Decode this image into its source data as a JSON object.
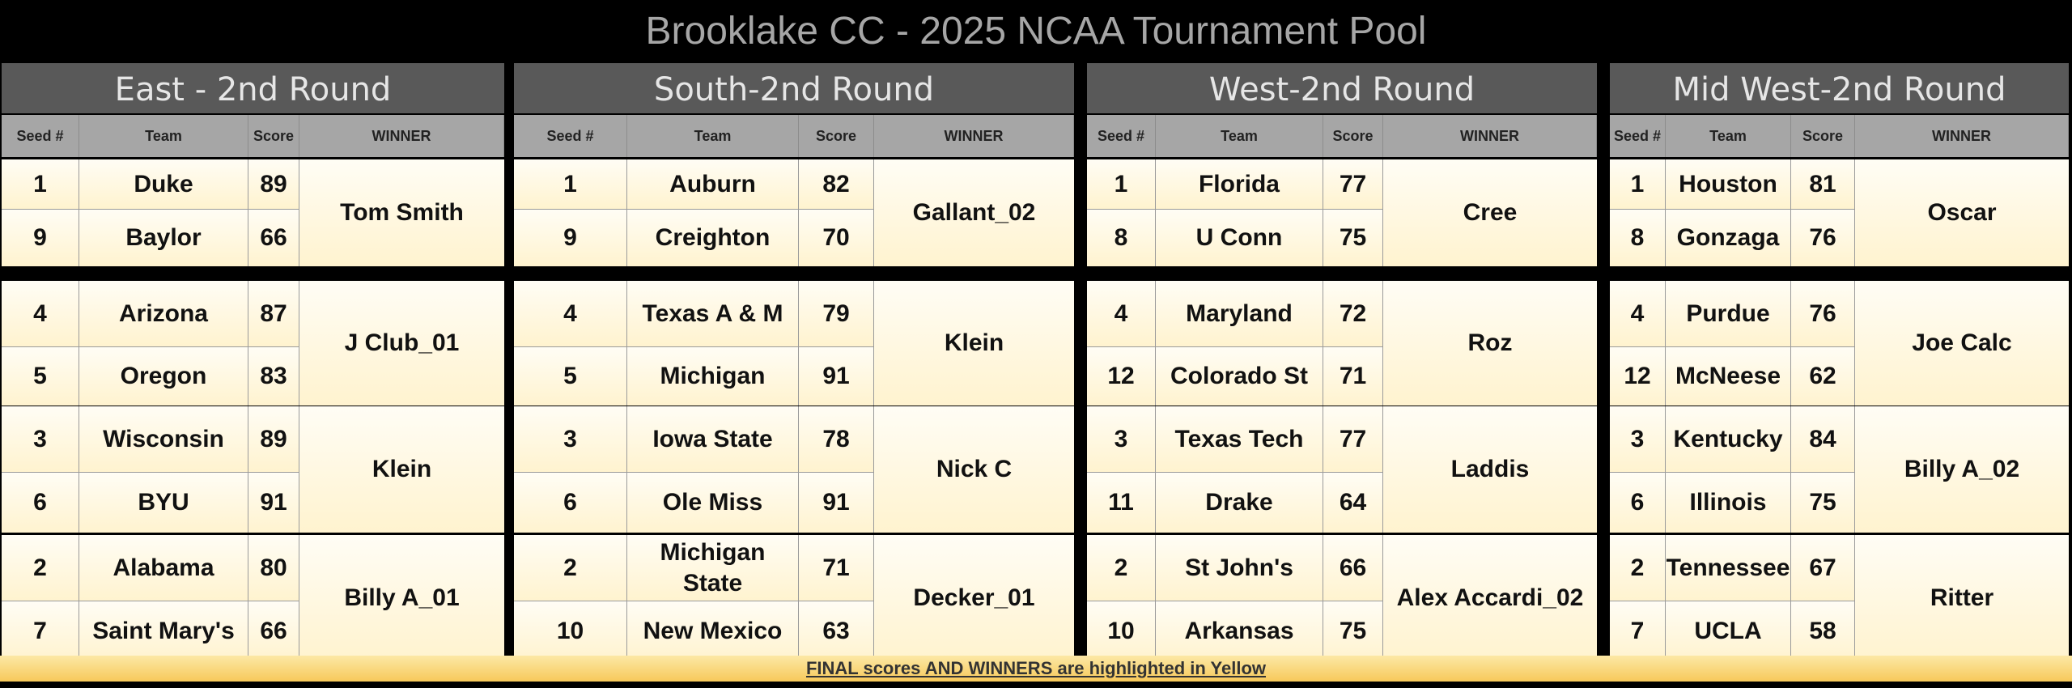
{
  "page_title": "Brooklake CC - 2025 NCAA Tournament Pool",
  "columns": {
    "seed": "Seed #",
    "team": "Team",
    "score": "Score",
    "winner": "WINNER"
  },
  "regions": [
    {
      "title": "East - 2nd Round",
      "matchups": [
        {
          "teams": [
            {
              "seed": "1",
              "team": "Duke",
              "score": "89"
            },
            {
              "seed": "9",
              "team": "Baylor",
              "score": "66"
            }
          ],
          "winner": "Tom Smith"
        },
        {
          "teams": [
            {
              "seed": "4",
              "team": "Arizona",
              "score": "87"
            },
            {
              "seed": "5",
              "team": "Oregon",
              "score": "83"
            }
          ],
          "winner": "J Club_01"
        },
        {
          "teams": [
            {
              "seed": "3",
              "team": "Wisconsin",
              "score": "89"
            },
            {
              "seed": "6",
              "team": "BYU",
              "score": "91"
            }
          ],
          "winner": "Klein"
        },
        {
          "teams": [
            {
              "seed": "2",
              "team": "Alabama",
              "score": "80"
            },
            {
              "seed": "7",
              "team": "Saint Mary's",
              "score": "66"
            }
          ],
          "winner": "Billy A_01"
        }
      ]
    },
    {
      "title": "South-2nd Round",
      "matchups": [
        {
          "teams": [
            {
              "seed": "1",
              "team": "Auburn",
              "score": "82"
            },
            {
              "seed": "9",
              "team": "Creighton",
              "score": "70"
            }
          ],
          "winner": "Gallant_02"
        },
        {
          "teams": [
            {
              "seed": "4",
              "team": "Texas A & M",
              "score": "79"
            },
            {
              "seed": "5",
              "team": "Michigan",
              "score": "91"
            }
          ],
          "winner": "Klein"
        },
        {
          "teams": [
            {
              "seed": "3",
              "team": "Iowa State",
              "score": "78"
            },
            {
              "seed": "6",
              "team": "Ole Miss",
              "score": "91"
            }
          ],
          "winner": "Nick C"
        },
        {
          "teams": [
            {
              "seed": "2",
              "team": "Michigan State",
              "score": "71"
            },
            {
              "seed": "10",
              "team": "New Mexico",
              "score": "63"
            }
          ],
          "winner": "Decker_01"
        }
      ]
    },
    {
      "title": "West-2nd Round",
      "matchups": [
        {
          "teams": [
            {
              "seed": "1",
              "team": "Florida",
              "score": "77"
            },
            {
              "seed": "8",
              "team": "U Conn",
              "score": "75"
            }
          ],
          "winner": "Cree"
        },
        {
          "teams": [
            {
              "seed": "4",
              "team": "Maryland",
              "score": "72"
            },
            {
              "seed": "12",
              "team": "Colorado St",
              "score": "71"
            }
          ],
          "winner": "Roz"
        },
        {
          "teams": [
            {
              "seed": "3",
              "team": "Texas Tech",
              "score": "77"
            },
            {
              "seed": "11",
              "team": "Drake",
              "score": "64"
            }
          ],
          "winner": "Laddis"
        },
        {
          "teams": [
            {
              "seed": "2",
              "team": "St John's",
              "score": "66"
            },
            {
              "seed": "10",
              "team": "Arkansas",
              "score": "75"
            }
          ],
          "winner": "Alex Accardi_02"
        }
      ]
    },
    {
      "title": "Mid West-2nd Round",
      "matchups": [
        {
          "teams": [
            {
              "seed": "1",
              "team": "Houston",
              "score": "81"
            },
            {
              "seed": "8",
              "team": "Gonzaga",
              "score": "76"
            }
          ],
          "winner": "Oscar"
        },
        {
          "teams": [
            {
              "seed": "4",
              "team": "Purdue",
              "score": "76"
            },
            {
              "seed": "12",
              "team": "McNeese",
              "score": "62"
            }
          ],
          "winner": "Joe Calc"
        },
        {
          "teams": [
            {
              "seed": "3",
              "team": "Kentucky",
              "score": "84"
            },
            {
              "seed": "6",
              "team": "Illinois",
              "score": "75"
            }
          ],
          "winner": "Billy A_02"
        },
        {
          "teams": [
            {
              "seed": "2",
              "team": "Tennessee",
              "score": "67"
            },
            {
              "seed": "7",
              "team": "UCLA",
              "score": "58"
            }
          ],
          "winner": "Ritter"
        }
      ]
    }
  ],
  "footer": "FINAL scores AND WINNERS are highlighted in Yellow"
}
